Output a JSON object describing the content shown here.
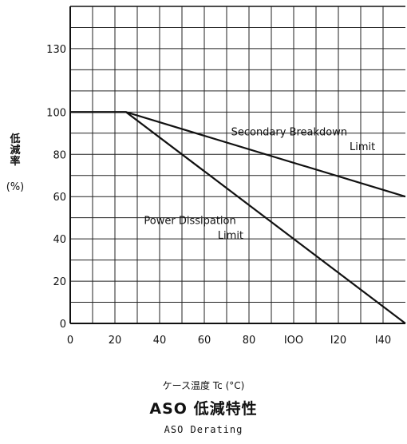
{
  "chart_data": {
    "type": "line",
    "title": "ASO 低減特性",
    "subtitle": "ASO Derating",
    "xlabel": "ケース温度 Tc (°C)",
    "ylabel": "低減率",
    "ylabel_unit": "(%)",
    "xlim": [
      0,
      150
    ],
    "ylim": [
      0,
      150
    ],
    "x_ticks": [
      0,
      20,
      40,
      60,
      80,
      100,
      120,
      140
    ],
    "x_tick_labels": [
      "0",
      "20",
      "40",
      "60",
      "80",
      "IOO",
      "I20",
      "I40"
    ],
    "y_ticks": [
      0,
      20,
      40,
      60,
      80,
      100,
      130
    ],
    "y_tick_labels": [
      "0",
      "20",
      "40",
      "60",
      "80",
      "100",
      "130"
    ],
    "grid": true,
    "legend": "none",
    "series": [
      {
        "name": "Secondary Breakdown Limit",
        "x": [
          0,
          25,
          150
        ],
        "y": [
          100,
          100,
          60
        ]
      },
      {
        "name": "Power Dissipation Limit",
        "x": [
          0,
          25,
          150
        ],
        "y": [
          100,
          100,
          0
        ]
      }
    ],
    "annotations": [
      {
        "text": "Secondary  Breakdown",
        "x": 72,
        "y": 89
      },
      {
        "text": "Limit",
        "x": 125,
        "y": 82
      },
      {
        "text": "Power  Dissipation",
        "x": 33,
        "y": 47
      },
      {
        "text": "Limit",
        "x": 66,
        "y": 40
      }
    ]
  }
}
